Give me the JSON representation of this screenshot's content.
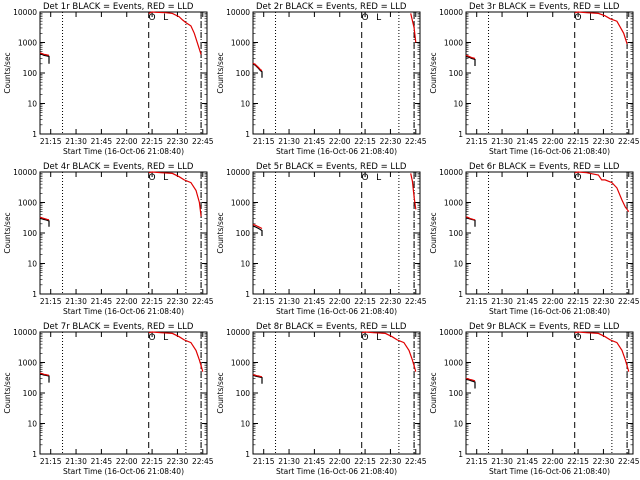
{
  "colors": {
    "events": "#000000",
    "lld": "#e00000",
    "axis": "#000000",
    "background": "#ffffff"
  },
  "chart_data": [
    {
      "type": "line",
      "title": "Det 1r BLACK = Events, RED = LLD",
      "xlabel": "Start Time (16-Oct-06 21:08:40)",
      "ylabel": "Counts/sec",
      "yscale": "log",
      "ylim": [
        1,
        10000
      ],
      "xlim": [
        "21:08:40",
        "22:47:30"
      ],
      "x_ticks": [
        "21:15",
        "21:30",
        "21:45",
        "22:00",
        "22:15",
        "22:30",
        "22:45"
      ],
      "y_ticks": [
        "1",
        "10",
        "100",
        "1000",
        "10000"
      ],
      "markers": {
        "dotted": [
          "21:22",
          "22:35",
          "22:44"
        ],
        "dashed": [
          "22:13",
          "22:44"
        ]
      },
      "annotations": [
        {
          "text": "O",
          "x": "22:15"
        },
        {
          "text": "L",
          "x": "22:23"
        }
      ],
      "series": [
        {
          "name": "Events",
          "color": "#000000",
          "x": [
            "21:08:40",
            "21:10",
            "21:11",
            "21:12",
            "21:13",
            "21:14",
            "21:14"
          ],
          "y": [
            430,
            400,
            380,
            370,
            360,
            350,
            200
          ]
        },
        {
          "name": "LLD",
          "color": "#e00000",
          "x": [
            "21:08:40",
            "21:10",
            "21:11",
            "21:12",
            "21:13",
            "21:14",
            "22:13",
            "22:14",
            "22:15",
            "22:17",
            "22:23",
            "22:27",
            "22:31",
            "22:33",
            "22:35",
            "22:38",
            "22:40",
            "22:42",
            "22:44"
          ],
          "y": [
            460,
            430,
            410,
            400,
            390,
            380,
            9000,
            9500,
            10000,
            9800,
            9500,
            9000,
            7000,
            5500,
            4500,
            3500,
            2000,
            900,
            400
          ]
        }
      ]
    },
    {
      "type": "line",
      "title": "Det 2r BLACK = Events, RED = LLD",
      "xlabel": "Start Time (16-Oct-06 21:08:40)",
      "ylabel": "Counts/sec",
      "yscale": "log",
      "ylim": [
        1,
        10000
      ],
      "xlim": [
        "21:08:40",
        "22:47:30"
      ],
      "x_ticks": [
        "21:15",
        "21:30",
        "21:45",
        "22:00",
        "22:15",
        "22:30",
        "22:45"
      ],
      "y_ticks": [
        "1",
        "10",
        "100",
        "1000",
        "10000"
      ],
      "markers": {
        "dotted": [
          "21:22",
          "22:35",
          "22:44"
        ],
        "dashed": [
          "22:13",
          "22:44"
        ]
      },
      "annotations": [
        {
          "text": "O",
          "x": "22:15"
        },
        {
          "text": "L",
          "x": "22:23"
        }
      ],
      "series": [
        {
          "name": "Events",
          "color": "#000000",
          "x": [
            "21:08:40",
            "21:10",
            "21:11",
            "21:12",
            "21:13",
            "21:14",
            "21:14"
          ],
          "y": [
            200,
            180,
            160,
            140,
            120,
            110,
            70
          ]
        },
        {
          "name": "LLD",
          "color": "#e00000",
          "x": [
            "21:08:40",
            "21:10",
            "21:11",
            "21:12",
            "21:13",
            "21:14",
            "22:42",
            "22:44",
            "22:45"
          ],
          "y": [
            210,
            190,
            170,
            150,
            130,
            120,
            9000,
            3000,
            1000
          ]
        }
      ]
    },
    {
      "type": "line",
      "title": "Det 3r BLACK = Events, RED = LLD",
      "xlabel": "Start Time (16-Oct-06 21:08:40)",
      "ylabel": "Counts/sec",
      "yscale": "log",
      "ylim": [
        1,
        10000
      ],
      "xlim": [
        "21:08:40",
        "22:47:30"
      ],
      "x_ticks": [
        "21:15",
        "21:30",
        "21:45",
        "22:00",
        "22:15",
        "22:30",
        "22:45"
      ],
      "y_ticks": [
        "1",
        "10",
        "100",
        "1000",
        "10000"
      ],
      "markers": {
        "dotted": [
          "21:22",
          "22:35",
          "22:44"
        ],
        "dashed": [
          "22:13",
          "22:44"
        ]
      },
      "annotations": [
        {
          "text": "O",
          "x": "22:15"
        },
        {
          "text": "L",
          "x": "22:23"
        }
      ],
      "series": [
        {
          "name": "Events",
          "color": "#000000",
          "x": [
            "21:08:40",
            "21:10",
            "21:11",
            "21:12",
            "21:13",
            "21:14",
            "21:14"
          ],
          "y": [
            350,
            330,
            320,
            300,
            290,
            280,
            170
          ]
        },
        {
          "name": "LLD",
          "color": "#e00000",
          "x": [
            "21:08:40",
            "21:10",
            "21:11",
            "21:12",
            "21:13",
            "21:14",
            "22:13",
            "22:15",
            "22:20",
            "22:27",
            "22:31",
            "22:34",
            "22:38",
            "22:42",
            "22:44"
          ],
          "y": [
            380,
            360,
            340,
            320,
            310,
            300,
            9500,
            10000,
            9500,
            9000,
            7500,
            6000,
            5000,
            2000,
            900
          ]
        }
      ]
    },
    {
      "type": "line",
      "title": "Det 4r BLACK = Events, RED = LLD",
      "xlabel": "Start Time (16-Oct-06 21:08:40)",
      "ylabel": "Counts/sec",
      "yscale": "log",
      "ylim": [
        1,
        10000
      ],
      "xlim": [
        "21:08:40",
        "22:47:30"
      ],
      "x_ticks": [
        "21:15",
        "21:30",
        "21:45",
        "22:00",
        "22:15",
        "22:30",
        "22:45"
      ],
      "y_ticks": [
        "1",
        "10",
        "100",
        "1000",
        "10000"
      ],
      "markers": {
        "dotted": [
          "21:22",
          "22:35",
          "22:44"
        ],
        "dashed": [
          "22:13",
          "22:44"
        ]
      },
      "annotations": [
        {
          "text": "O",
          "x": "22:15"
        },
        {
          "text": "L",
          "x": "22:23"
        }
      ],
      "series": [
        {
          "name": "Events",
          "color": "#000000",
          "x": [
            "21:08:40",
            "21:10",
            "21:11",
            "21:12",
            "21:13",
            "21:14",
            "21:14"
          ],
          "y": [
            300,
            290,
            280,
            270,
            260,
            250,
            160
          ]
        },
        {
          "name": "LLD",
          "color": "#e00000",
          "x": [
            "21:08:40",
            "21:10",
            "21:11",
            "21:12",
            "21:13",
            "21:14",
            "22:13",
            "22:15",
            "22:20",
            "22:27",
            "22:31",
            "22:34",
            "22:38",
            "22:41",
            "22:43",
            "22:44"
          ],
          "y": [
            330,
            310,
            300,
            290,
            280,
            270,
            9500,
            10000,
            9500,
            9000,
            7000,
            5500,
            4500,
            2500,
            1000,
            350
          ]
        }
      ]
    },
    {
      "type": "line",
      "title": "Det 5r BLACK = Events, RED = LLD",
      "xlabel": "Start Time (16-Oct-06 21:08:40)",
      "ylabel": "Counts/sec",
      "yscale": "log",
      "ylim": [
        1,
        10000
      ],
      "xlim": [
        "21:08:40",
        "22:47:30"
      ],
      "x_ticks": [
        "21:15",
        "21:30",
        "21:45",
        "22:00",
        "22:15",
        "22:30",
        "22:45"
      ],
      "y_ticks": [
        "1",
        "10",
        "100",
        "1000",
        "10000"
      ],
      "markers": {
        "dotted": [
          "21:22",
          "22:35",
          "22:44"
        ],
        "dashed": [
          "22:13",
          "22:44"
        ]
      },
      "annotations": [
        {
          "text": "O",
          "x": "22:15"
        },
        {
          "text": "L",
          "x": "22:23"
        }
      ],
      "series": [
        {
          "name": "Events",
          "color": "#000000",
          "x": [
            "21:08:40",
            "21:10",
            "21:11",
            "21:12",
            "21:13",
            "21:14",
            "21:14"
          ],
          "y": [
            170,
            160,
            150,
            140,
            130,
            120,
            80
          ]
        },
        {
          "name": "LLD",
          "color": "#e00000",
          "x": [
            "21:08:40",
            "21:10",
            "21:11",
            "21:12",
            "21:13",
            "21:14",
            "22:42",
            "22:43",
            "22:44",
            "22:45"
          ],
          "y": [
            190,
            180,
            170,
            160,
            150,
            140,
            9000,
            5000,
            1500,
            600
          ]
        }
      ]
    },
    {
      "type": "line",
      "title": "Det 6r BLACK = Events, RED = LLD",
      "xlabel": "Start Time (16-Oct-06 21:08:40)",
      "ylabel": "Counts/sec",
      "yscale": "log",
      "ylim": [
        1,
        10000
      ],
      "xlim": [
        "21:08:40",
        "22:47:30"
      ],
      "x_ticks": [
        "21:15",
        "21:30",
        "21:45",
        "22:00",
        "22:15",
        "22:30",
        "22:45"
      ],
      "y_ticks": [
        "1",
        "10",
        "100",
        "1000",
        "10000"
      ],
      "markers": {
        "dotted": [
          "21:22",
          "22:35",
          "22:44"
        ],
        "dashed": [
          "22:13",
          "22:44"
        ]
      },
      "annotations": [
        {
          "text": "O",
          "x": "22:15"
        },
        {
          "text": "L",
          "x": "22:23"
        }
      ],
      "series": [
        {
          "name": "Events",
          "color": "#000000",
          "x": [
            "21:08:40",
            "21:10",
            "21:11",
            "21:12",
            "21:13",
            "21:14",
            "21:14"
          ],
          "y": [
            320,
            300,
            290,
            280,
            270,
            260,
            160
          ]
        },
        {
          "name": "LLD",
          "color": "#e00000",
          "x": [
            "21:08:40",
            "21:10",
            "21:11",
            "21:12",
            "21:13",
            "21:14",
            "22:13",
            "22:15",
            "22:20",
            "22:27",
            "22:29",
            "22:31",
            "22:35",
            "22:38",
            "22:41",
            "22:43",
            "22:45"
          ],
          "y": [
            340,
            320,
            300,
            290,
            280,
            270,
            9500,
            10000,
            9500,
            8000,
            5500,
            5500,
            4500,
            3000,
            1200,
            700,
            500
          ]
        }
      ]
    },
    {
      "type": "line",
      "title": "Det 7r BLACK = Events, RED = LLD",
      "xlabel": "Start Time (16-Oct-06 21:08:40)",
      "ylabel": "Counts/sec",
      "yscale": "log",
      "ylim": [
        1,
        10000
      ],
      "xlim": [
        "21:08:40",
        "22:47:30"
      ],
      "x_ticks": [
        "21:15",
        "21:30",
        "21:45",
        "22:00",
        "22:15",
        "22:30",
        "22:45"
      ],
      "y_ticks": [
        "1",
        "10",
        "100",
        "1000",
        "10000"
      ],
      "markers": {
        "dotted": [
          "21:22",
          "22:35",
          "22:44"
        ],
        "dashed": [
          "22:13",
          "22:44"
        ]
      },
      "annotations": [
        {
          "text": "O",
          "x": "22:15"
        },
        {
          "text": "L",
          "x": "22:23"
        }
      ],
      "series": [
        {
          "name": "Events",
          "color": "#000000",
          "x": [
            "21:08:40",
            "21:10",
            "21:11",
            "21:12",
            "21:13",
            "21:14",
            "21:14"
          ],
          "y": [
            420,
            400,
            390,
            380,
            370,
            360,
            220
          ]
        },
        {
          "name": "LLD",
          "color": "#e00000",
          "x": [
            "21:08:40",
            "21:10",
            "21:11",
            "21:12",
            "21:13",
            "21:14",
            "22:13",
            "22:15",
            "22:20",
            "22:27",
            "22:31",
            "22:34",
            "22:38",
            "22:41",
            "22:43",
            "22:45"
          ],
          "y": [
            450,
            430,
            410,
            400,
            390,
            380,
            9500,
            10000,
            9500,
            9000,
            7000,
            5500,
            4500,
            2500,
            1200,
            500
          ]
        }
      ]
    },
    {
      "type": "line",
      "title": "Det 8r BLACK = Events, RED = LLD",
      "xlabel": "Start Time (16-Oct-06 21:08:40)",
      "ylabel": "Counts/sec",
      "yscale": "log",
      "ylim": [
        1,
        10000
      ],
      "xlim": [
        "21:08:40",
        "22:47:30"
      ],
      "x_ticks": [
        "21:15",
        "21:30",
        "21:45",
        "22:00",
        "22:15",
        "22:30",
        "22:45"
      ],
      "y_ticks": [
        "1",
        "10",
        "100",
        "1000",
        "10000"
      ],
      "markers": {
        "dotted": [
          "21:22",
          "22:35",
          "22:44"
        ],
        "dashed": [
          "22:13",
          "22:44"
        ]
      },
      "annotations": [
        {
          "text": "O",
          "x": "22:15"
        },
        {
          "text": "L",
          "x": "22:23"
        }
      ],
      "series": [
        {
          "name": "Events",
          "color": "#000000",
          "x": [
            "21:08:40",
            "21:10",
            "21:11",
            "21:12",
            "21:13",
            "21:14",
            "21:14"
          ],
          "y": [
            380,
            360,
            350,
            340,
            330,
            320,
            200
          ]
        },
        {
          "name": "LLD",
          "color": "#e00000",
          "x": [
            "21:08:40",
            "21:10",
            "21:11",
            "21:12",
            "21:13",
            "21:14",
            "22:13",
            "22:15",
            "22:20",
            "22:27",
            "22:31",
            "22:34",
            "22:38",
            "22:41",
            "22:43",
            "22:45"
          ],
          "y": [
            400,
            380,
            370,
            360,
            350,
            340,
            9500,
            10000,
            9500,
            9000,
            7000,
            5500,
            4500,
            2500,
            1200,
            500
          ]
        }
      ]
    },
    {
      "type": "line",
      "title": "Det 9r BLACK = Events, RED = LLD",
      "xlabel": "Start Time (16-Oct-06 21:08:40)",
      "ylabel": "Counts/sec",
      "yscale": "log",
      "ylim": [
        1,
        10000
      ],
      "xlim": [
        "21:08:40",
        "22:47:30"
      ],
      "x_ticks": [
        "21:15",
        "21:30",
        "21:45",
        "22:00",
        "22:15",
        "22:30",
        "22:45"
      ],
      "y_ticks": [
        "1",
        "10",
        "100",
        "1000",
        "10000"
      ],
      "markers": {
        "dotted": [
          "21:22",
          "22:35",
          "22:44"
        ],
        "dashed": [
          "22:13",
          "22:44"
        ]
      },
      "annotations": [
        {
          "text": "O",
          "x": "22:15"
        },
        {
          "text": "L",
          "x": "22:23"
        }
      ],
      "series": [
        {
          "name": "Events",
          "color": "#000000",
          "x": [
            "21:08:40",
            "21:10",
            "21:11",
            "21:12",
            "21:13",
            "21:14",
            "21:14"
          ],
          "y": [
            280,
            270,
            260,
            250,
            240,
            230,
            140
          ]
        },
        {
          "name": "LLD",
          "color": "#e00000",
          "x": [
            "21:08:40",
            "21:10",
            "21:11",
            "21:12",
            "21:13",
            "21:14",
            "22:13",
            "22:15",
            "22:20",
            "22:27",
            "22:31",
            "22:34",
            "22:38",
            "22:41",
            "22:43",
            "22:45"
          ],
          "y": [
            300,
            290,
            280,
            270,
            260,
            250,
            9500,
            10000,
            9500,
            9000,
            7000,
            5500,
            4500,
            2500,
            1200,
            500
          ]
        }
      ]
    }
  ]
}
